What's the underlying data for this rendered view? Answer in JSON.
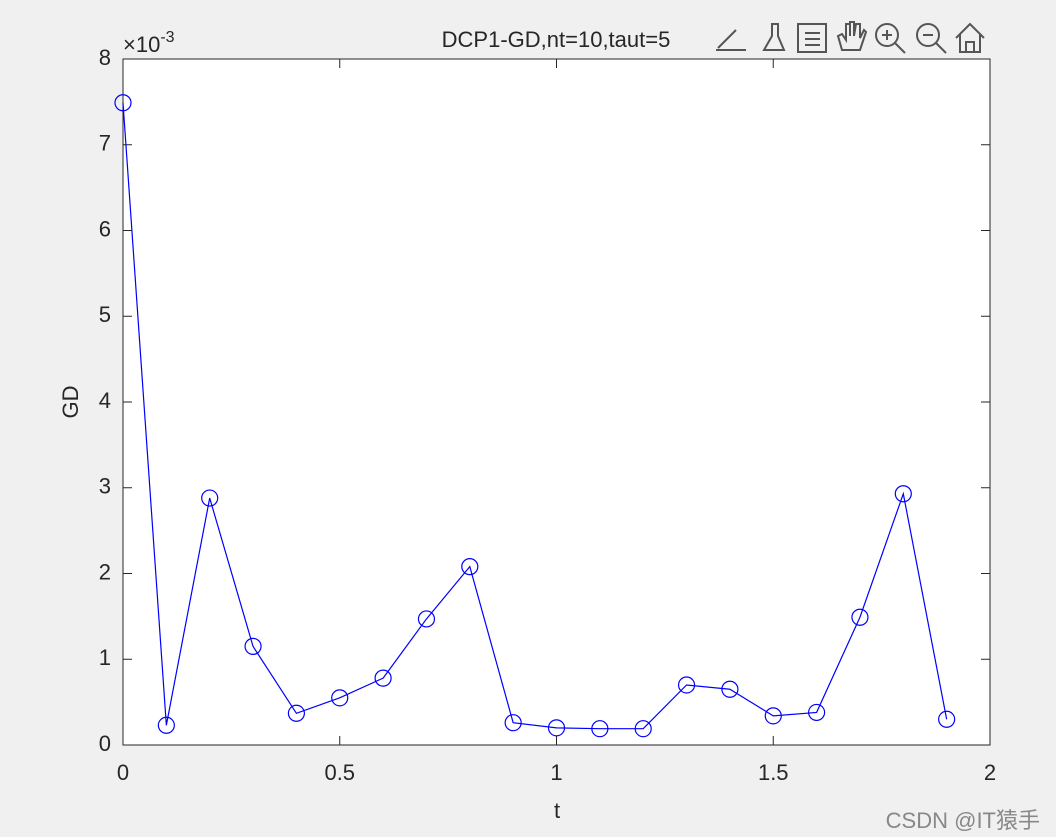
{
  "chart_data": {
    "type": "line",
    "title": "DCP1-GD,nt=10,taut=5",
    "x_label": "t",
    "y_label": "GD",
    "y_multiplier_base": "×10",
    "y_multiplier_exponent": "-3",
    "x": [
      0,
      0.1,
      0.2,
      0.3,
      0.4,
      0.5,
      0.6,
      0.7,
      0.8,
      0.9,
      1.0,
      1.1,
      1.2,
      1.3,
      1.4,
      1.5,
      1.6,
      1.7,
      1.8,
      1.9
    ],
    "values": [
      7.49,
      0.23,
      2.88,
      1.15,
      0.37,
      0.55,
      0.78,
      1.47,
      2.08,
      0.26,
      0.2,
      0.19,
      0.19,
      0.7,
      0.65,
      0.34,
      0.38,
      1.49,
      2.93,
      0.3
    ],
    "color": "#0000ff",
    "marker": "circle",
    "xlim": [
      0,
      2
    ],
    "xticks": [
      0,
      0.5,
      1,
      1.5,
      2
    ],
    "ylim": [
      0,
      8
    ],
    "yticks": [
      0,
      1,
      2,
      3,
      4,
      5,
      6,
      7,
      8
    ],
    "grid": false
  },
  "watermark": "CSDN @IT猿手"
}
